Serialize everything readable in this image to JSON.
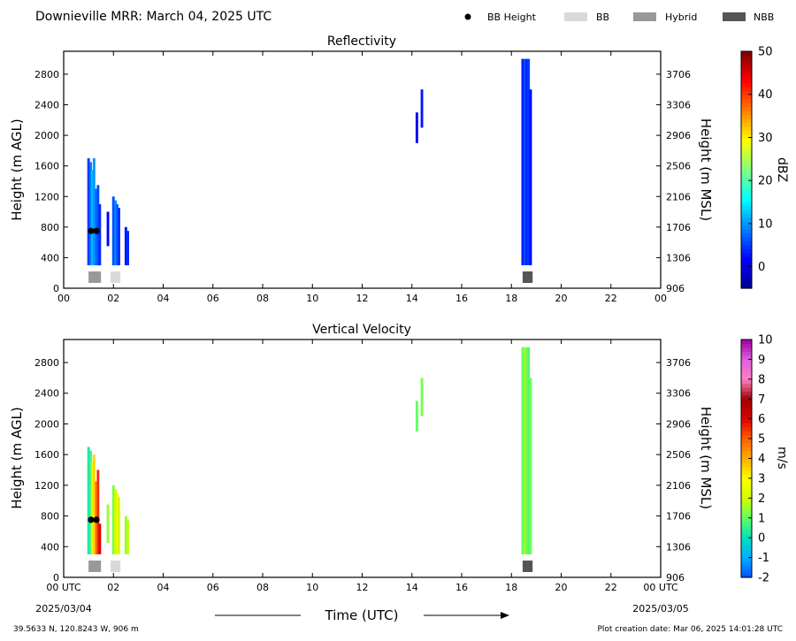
{
  "header": {
    "title": "Downieville MRR:  March 04, 2025 UTC",
    "legend": [
      {
        "label": "BB Height",
        "symbol": "dot",
        "color": "#000000"
      },
      {
        "label": "BB",
        "symbol": "box",
        "color": "#d9d9d9"
      },
      {
        "label": "Hybrid",
        "symbol": "box",
        "color": "#999999"
      },
      {
        "label": "NBB",
        "symbol": "box",
        "color": "#555555"
      }
    ]
  },
  "footer": {
    "location": "39.5633 N, 120.8243 W, 906 m",
    "creation": "Plot creation date: Mar 06, 2025 14:01:28 UTC",
    "xlabel": "Time (UTC)",
    "start_date": "2025/03/04",
    "end_date": "2025/03/05"
  },
  "chart_data": [
    {
      "type": "heatmap",
      "title": "Reflectivity",
      "ylabel": "Height (m AGL)",
      "y2label": "Height (m MSL)",
      "colorbar_label": "dBZ",
      "xlim": [
        0,
        24
      ],
      "ylim": [
        0,
        3100
      ],
      "x_ticks": [
        "00",
        "02",
        "04",
        "06",
        "08",
        "10",
        "12",
        "14",
        "16",
        "18",
        "20",
        "22",
        "00"
      ],
      "y_ticks": [
        0,
        400,
        800,
        1200,
        1600,
        2000,
        2400,
        2800
      ],
      "y2_ticks": [
        906,
        1306,
        1706,
        2106,
        2506,
        2906,
        3306,
        3706
      ],
      "colorbar_range": [
        -5,
        50
      ],
      "colorbar_ticks": [
        0,
        10,
        20,
        30,
        40,
        50
      ],
      "colormap": [
        "#00008f",
        "#0000ff",
        "#0080ff",
        "#00ffff",
        "#80ff80",
        "#ffff00",
        "#ff8000",
        "#ff0000",
        "#800000"
      ],
      "echoes": [
        {
          "x": 1.0,
          "bottom": 300,
          "top": 1700,
          "value": 5
        },
        {
          "x": 1.08,
          "bottom": 300,
          "top": 1650,
          "value": 8
        },
        {
          "x": 1.15,
          "bottom": 300,
          "top": 1550,
          "value": 12
        },
        {
          "x": 1.22,
          "bottom": 300,
          "top": 1700,
          "value": 10
        },
        {
          "x": 1.3,
          "bottom": 300,
          "top": 1300,
          "value": 8
        },
        {
          "x": 1.38,
          "bottom": 300,
          "top": 1350,
          "value": 6
        },
        {
          "x": 1.45,
          "bottom": 300,
          "top": 1100,
          "value": 4
        },
        {
          "x": 1.78,
          "bottom": 550,
          "top": 1000,
          "value": 2
        },
        {
          "x": 2.0,
          "bottom": 300,
          "top": 1200,
          "value": 6
        },
        {
          "x": 2.08,
          "bottom": 300,
          "top": 1150,
          "value": 9
        },
        {
          "x": 2.15,
          "bottom": 300,
          "top": 1100,
          "value": 7
        },
        {
          "x": 2.22,
          "bottom": 300,
          "top": 1050,
          "value": 4
        },
        {
          "x": 2.5,
          "bottom": 300,
          "top": 800,
          "value": 3
        },
        {
          "x": 2.58,
          "bottom": 300,
          "top": 750,
          "value": 4
        },
        {
          "x": 14.2,
          "bottom": 1900,
          "top": 2300,
          "value": 1
        },
        {
          "x": 14.4,
          "bottom": 2100,
          "top": 2600,
          "value": 3
        },
        {
          "x": 18.45,
          "bottom": 300,
          "top": 3000,
          "value": 3
        },
        {
          "x": 18.53,
          "bottom": 300,
          "top": 3000,
          "value": 6
        },
        {
          "x": 18.61,
          "bottom": 300,
          "top": 3000,
          "value": 4
        },
        {
          "x": 18.69,
          "bottom": 300,
          "top": 3000,
          "value": 5
        },
        {
          "x": 18.77,
          "bottom": 300,
          "top": 2600,
          "value": 2
        }
      ],
      "bright_band": [
        {
          "x": 1.1,
          "height": 750
        },
        {
          "x": 1.32,
          "height": 750
        }
      ],
      "bb_type": [
        {
          "x_start": 1.0,
          "x_end": 1.5,
          "type": "Hybrid"
        },
        {
          "x_start": 1.88,
          "x_end": 2.28,
          "type": "BB"
        },
        {
          "x_start": 18.45,
          "x_end": 18.85,
          "type": "NBB"
        }
      ]
    },
    {
      "type": "heatmap",
      "title": "Vertical Velocity",
      "ylabel": "Height (m AGL)",
      "y2label": "Height (m MSL)",
      "colorbar_label": "m/s",
      "xlim": [
        0,
        24
      ],
      "ylim": [
        0,
        3100
      ],
      "x_ticks": [
        "00 UTC",
        "02",
        "04",
        "06",
        "08",
        "10",
        "12",
        "14",
        "16",
        "18",
        "20",
        "22",
        "00 UTC"
      ],
      "y_ticks": [
        0,
        400,
        800,
        1200,
        1600,
        2000,
        2400,
        2800
      ],
      "y2_ticks": [
        906,
        1306,
        1706,
        2106,
        2506,
        2906,
        3306,
        3706
      ],
      "colorbar_range": [
        -2,
        10
      ],
      "colorbar_ticks": [
        -2,
        -1,
        0,
        1,
        2,
        3,
        4,
        5,
        6,
        7,
        8,
        9,
        10
      ],
      "colormap": [
        "#0050ff",
        "#00b0ff",
        "#00e0c0",
        "#60ff60",
        "#d0ff00",
        "#ffff00",
        "#ffb000",
        "#ff6000",
        "#e00000",
        "#a00000",
        "#ff80c0",
        "#e060e0",
        "#a000a0"
      ],
      "echoes": [
        {
          "x": 1.0,
          "bottom": 300,
          "top": 1700,
          "value": 0.3
        },
        {
          "x": 1.08,
          "bottom": 300,
          "top": 1650,
          "value": 0.6
        },
        {
          "x": 1.15,
          "bottom": 300,
          "top": 1500,
          "value": 2.5
        },
        {
          "x": 1.22,
          "bottom": 300,
          "top": 1600,
          "value": 3.5
        },
        {
          "x": 1.3,
          "bottom": 300,
          "top": 1250,
          "value": 4.5
        },
        {
          "x": 1.38,
          "bottom": 300,
          "top": 1400,
          "value": 5.5
        },
        {
          "x": 1.45,
          "bottom": 300,
          "top": 700,
          "value": 6.0
        },
        {
          "x": 1.78,
          "bottom": 450,
          "top": 950,
          "value": 1.5
        },
        {
          "x": 2.0,
          "bottom": 300,
          "top": 1200,
          "value": 1.2
        },
        {
          "x": 2.08,
          "bottom": 300,
          "top": 1150,
          "value": 2.0
        },
        {
          "x": 2.15,
          "bottom": 300,
          "top": 1100,
          "value": 2.5
        },
        {
          "x": 2.22,
          "bottom": 300,
          "top": 1050,
          "value": 2.2
        },
        {
          "x": 2.5,
          "bottom": 300,
          "top": 800,
          "value": 1.5
        },
        {
          "x": 2.58,
          "bottom": 300,
          "top": 750,
          "value": 1.8
        },
        {
          "x": 14.2,
          "bottom": 1900,
          "top": 2300,
          "value": 1.0
        },
        {
          "x": 14.4,
          "bottom": 2100,
          "top": 2600,
          "value": 1.2
        },
        {
          "x": 18.45,
          "bottom": 300,
          "top": 3000,
          "value": 1.0
        },
        {
          "x": 18.53,
          "bottom": 300,
          "top": 3000,
          "value": 1.5
        },
        {
          "x": 18.61,
          "bottom": 300,
          "top": 3000,
          "value": 1.2
        },
        {
          "x": 18.69,
          "bottom": 300,
          "top": 3000,
          "value": 0.8
        },
        {
          "x": 18.77,
          "bottom": 300,
          "top": 2600,
          "value": 1.1
        }
      ],
      "bright_band": [
        {
          "x": 1.1,
          "height": 750
        },
        {
          "x": 1.32,
          "height": 750
        }
      ],
      "bb_type": [
        {
          "x_start": 1.0,
          "x_end": 1.5,
          "type": "Hybrid"
        },
        {
          "x_start": 1.88,
          "x_end": 2.28,
          "type": "BB"
        },
        {
          "x_start": 18.45,
          "x_end": 18.85,
          "type": "NBB"
        }
      ]
    }
  ]
}
